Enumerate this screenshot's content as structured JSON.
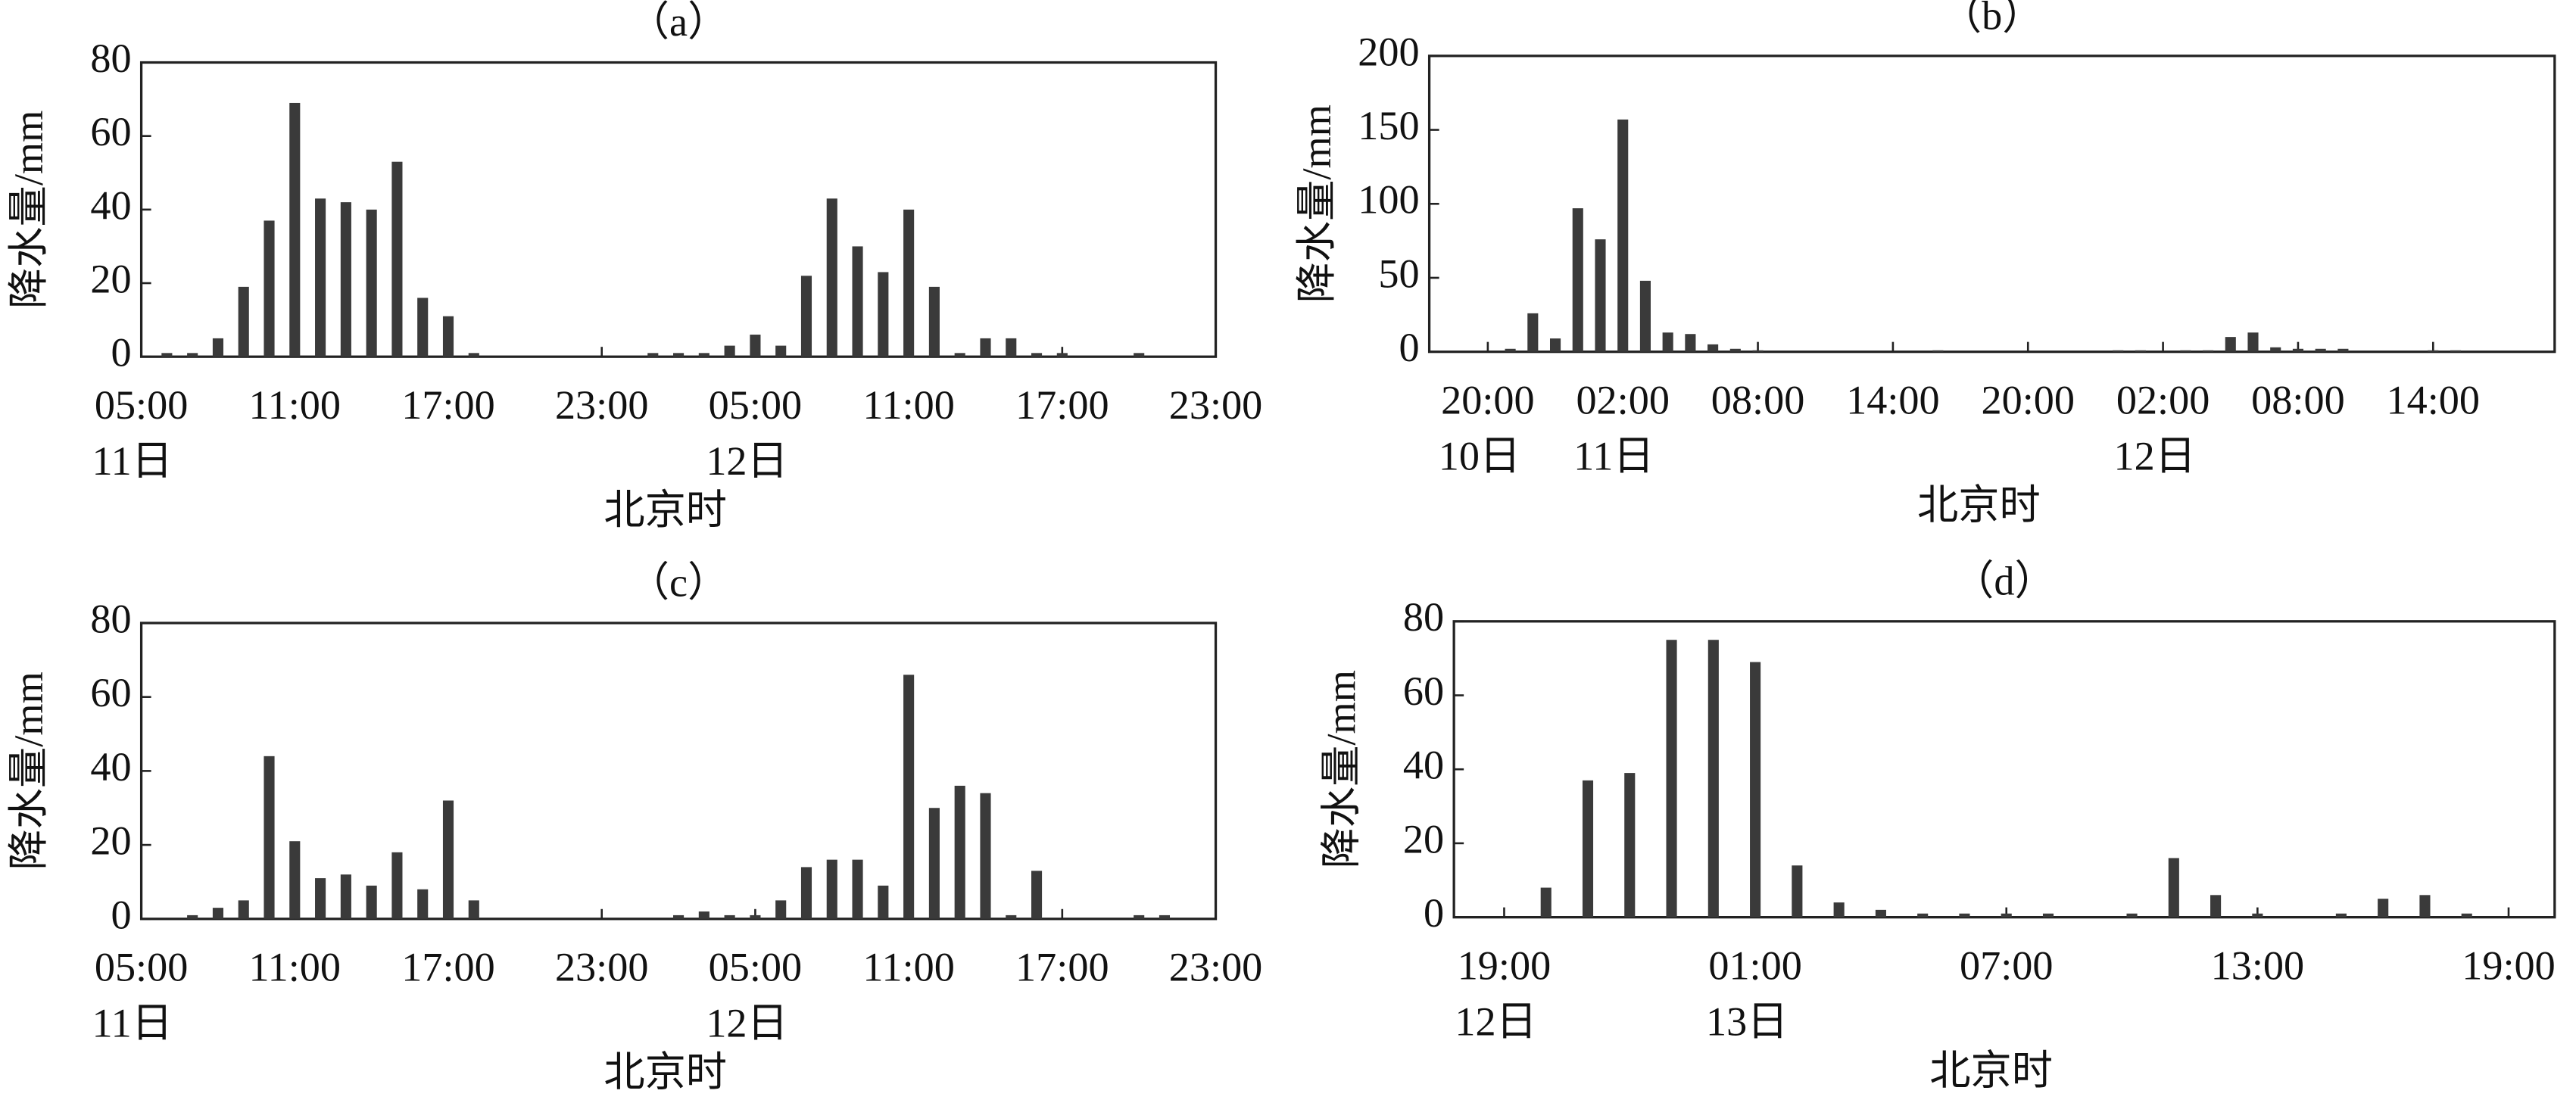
{
  "chart_data": [
    {
      "type": "bar",
      "title": "（a）",
      "ylabel": "降水量/mm",
      "xlabel": "北京时",
      "color": "#3a3a3a",
      "x": [
        1,
        2,
        3,
        4,
        5,
        6,
        7,
        8,
        9,
        10,
        11,
        12,
        13,
        20,
        21,
        22,
        23,
        24,
        25,
        26,
        27,
        28,
        29,
        30,
        31,
        32,
        33,
        34,
        35,
        36,
        39
      ],
      "values": [
        1,
        1,
        5,
        19,
        37,
        69,
        43,
        42,
        40,
        53,
        16,
        11,
        1,
        1,
        1,
        1,
        3,
        6,
        3,
        22,
        43,
        30,
        23,
        40,
        19,
        1,
        5,
        5,
        1,
        1,
        1
      ],
      "xlim": [
        0,
        42
      ],
      "ylim": [
        0,
        80
      ],
      "yticks": [
        0,
        20,
        40,
        60,
        80
      ],
      "xticks": [
        {
          "value": 0,
          "label": "05:00"
        },
        {
          "value": 6,
          "label": "11:00"
        },
        {
          "value": 12,
          "label": "17:00"
        },
        {
          "value": 18,
          "label": "23:00"
        },
        {
          "value": 24,
          "label": "05:00"
        },
        {
          "value": 30,
          "label": "11:00"
        },
        {
          "value": 36,
          "label": "17:00"
        },
        {
          "value": 42,
          "label": "23:00"
        }
      ],
      "xdates": [
        {
          "value": 0,
          "label": "11日"
        },
        {
          "value": 24,
          "label": "12日"
        }
      ]
    },
    {
      "type": "bar",
      "title": "（b）",
      "ylabel": "降水量/mm",
      "xlabel": "北京时",
      "color": "#3a3a3a",
      "x": [
        1,
        2,
        3,
        4,
        5,
        6,
        7,
        8,
        9,
        10,
        11,
        12,
        20,
        28,
        29,
        31,
        32,
        33,
        34,
        35,
        36,
        37,
        38,
        42,
        43
      ],
      "values": [
        2,
        26,
        9,
        97,
        76,
        157,
        48,
        13,
        12,
        5,
        2,
        1,
        1,
        1,
        1,
        1,
        1,
        10,
        13,
        3,
        2,
        2,
        2,
        1,
        1
      ],
      "xlim": [
        -2.6,
        47.4
      ],
      "ylim": [
        0,
        200
      ],
      "yticks": [
        0,
        50,
        100,
        150,
        200
      ],
      "xticks": [
        {
          "value": 0,
          "label": "20:00"
        },
        {
          "value": 6,
          "label": "02:00"
        },
        {
          "value": 12,
          "label": "08:00"
        },
        {
          "value": 18,
          "label": "14:00"
        },
        {
          "value": 24,
          "label": "20:00"
        },
        {
          "value": 30,
          "label": "02:00"
        },
        {
          "value": 36,
          "label": "08:00"
        },
        {
          "value": 42,
          "label": "14:00"
        }
      ],
      "xdates": [
        {
          "value": 0,
          "label": "10日"
        },
        {
          "value": 6,
          "label": "11日"
        },
        {
          "value": 30,
          "label": "12日"
        }
      ]
    },
    {
      "type": "bar",
      "title": "（c）",
      "ylabel": "降水量/mm",
      "xlabel": "北京时",
      "color": "#3a3a3a",
      "x": [
        2,
        3,
        4,
        5,
        6,
        7,
        8,
        9,
        10,
        11,
        12,
        13,
        21,
        22,
        23,
        24,
        25,
        26,
        27,
        28,
        29,
        30,
        31,
        32,
        33,
        34,
        35,
        39,
        40
      ],
      "values": [
        1,
        3,
        5,
        44,
        21,
        11,
        12,
        9,
        18,
        8,
        32,
        5,
        1,
        2,
        1,
        1,
        5,
        14,
        16,
        16,
        9,
        66,
        30,
        36,
        34,
        1,
        13,
        1,
        1
      ],
      "xlim": [
        0,
        42
      ],
      "ylim": [
        0,
        80
      ],
      "yticks": [
        0,
        20,
        40,
        60,
        80
      ],
      "xticks": [
        {
          "value": 0,
          "label": "05:00"
        },
        {
          "value": 6,
          "label": "11:00"
        },
        {
          "value": 12,
          "label": "17:00"
        },
        {
          "value": 18,
          "label": "23:00"
        },
        {
          "value": 24,
          "label": "05:00"
        },
        {
          "value": 30,
          "label": "11:00"
        },
        {
          "value": 36,
          "label": "17:00"
        },
        {
          "value": 42,
          "label": "23:00"
        }
      ],
      "xdates": [
        {
          "value": 0,
          "label": "11日"
        },
        {
          "value": 24,
          "label": "12日"
        }
      ]
    },
    {
      "type": "bar",
      "title": "（d）",
      "ylabel": "降水量/mm",
      "xlabel": "北京时",
      "color": "#3a3a3a",
      "x": [
        1,
        2,
        3,
        4,
        5,
        6,
        7,
        8,
        9,
        10,
        11,
        12,
        13,
        15,
        16,
        17,
        18,
        20,
        21,
        22,
        23
      ],
      "values": [
        8,
        37,
        39,
        75,
        75,
        69,
        14,
        4,
        2,
        1,
        1,
        1,
        1,
        1,
        16,
        6,
        1,
        1,
        5,
        6,
        1
      ],
      "xlim": [
        -1.2,
        25.1
      ],
      "ylim": [
        0,
        80
      ],
      "yticks": [
        0,
        20,
        40,
        60,
        80
      ],
      "xticks": [
        {
          "value": 0,
          "label": "19:00"
        },
        {
          "value": 6,
          "label": "01:00"
        },
        {
          "value": 12,
          "label": "07:00"
        },
        {
          "value": 18,
          "label": "13:00"
        },
        {
          "value": 24,
          "label": "19:00"
        }
      ],
      "xdates": [
        {
          "value": 0,
          "label": "12日"
        },
        {
          "value": 6,
          "label": "13日"
        }
      ]
    }
  ]
}
